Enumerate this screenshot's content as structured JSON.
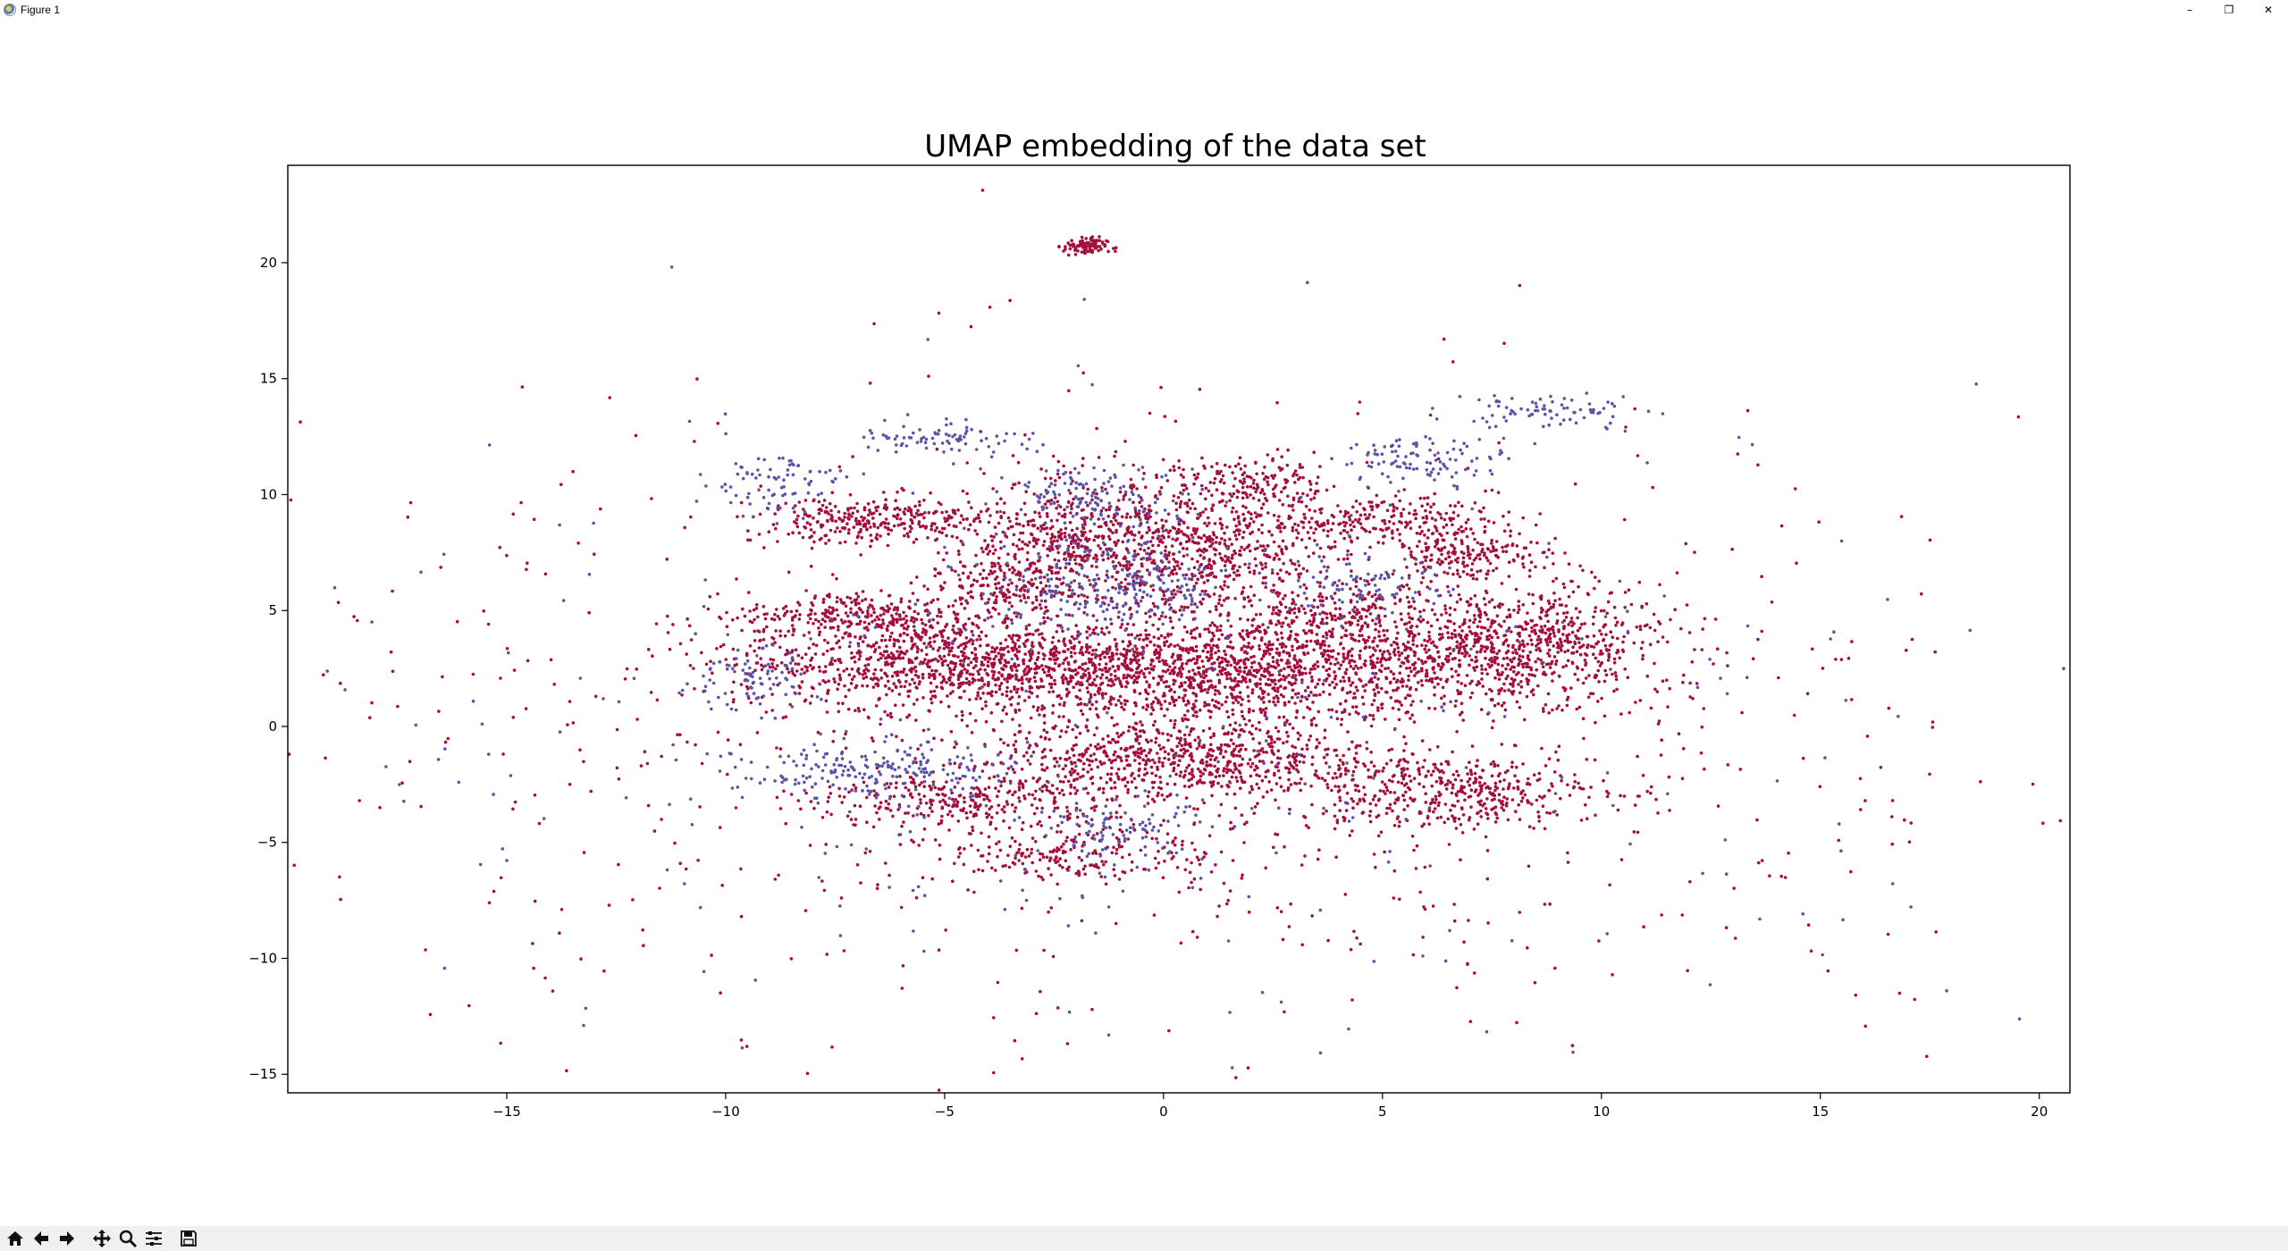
{
  "window": {
    "title": "Figure 1",
    "controls": [
      {
        "name": "minimize-button",
        "glyph": "–"
      },
      {
        "name": "restore-button",
        "glyph": "❐"
      },
      {
        "name": "close-button",
        "glyph": "✕"
      }
    ]
  },
  "toolbar": {
    "tools": [
      {
        "name": "home-button",
        "icon": "home-icon"
      },
      {
        "name": "back-button",
        "icon": "arrow-left-icon"
      },
      {
        "name": "forward-button",
        "icon": "arrow-right-icon"
      },
      {
        "name": "pan-button",
        "icon": "move-icon"
      },
      {
        "name": "zoom-button",
        "icon": "magnifier-icon"
      },
      {
        "name": "configure-subplots-button",
        "icon": "sliders-icon"
      },
      {
        "name": "save-button",
        "icon": "floppy-disk-icon"
      }
    ]
  },
  "chart_data": {
    "type": "scatter",
    "title": "UMAP embedding of the data set",
    "xlabel": "",
    "ylabel": "",
    "xlim": [
      -20,
      20.7
    ],
    "ylim": [
      -15.8,
      24.2
    ],
    "xticks": [
      -15,
      -10,
      -5,
      0,
      5,
      10,
      15,
      20
    ],
    "yticks": [
      -15,
      -10,
      -5,
      0,
      5,
      10,
      15,
      20
    ],
    "tick_labels_x": [
      "−15",
      "−10",
      "−5",
      "0",
      "5",
      "10",
      "15",
      "20"
    ],
    "tick_labels_y": [
      "−15",
      "−10",
      "−5",
      "0",
      "5",
      "10",
      "15",
      "20"
    ],
    "grid": false,
    "legend": "none",
    "colors": {
      "class_a": "#a50f3c",
      "class_b": "#5a55a8"
    },
    "series": [
      {
        "color": "#a50f3c",
        "clusters": [
          {
            "cx": 1.5,
            "cy": 2.3,
            "sx": 3.6,
            "sy": 1.1,
            "count": 1500
          },
          {
            "cx": -5.0,
            "cy": 2.8,
            "sx": 2.4,
            "sy": 1.0,
            "count": 900
          },
          {
            "cx": 0.5,
            "cy": -1.4,
            "sx": 2.2,
            "sy": 0.9,
            "count": 700
          },
          {
            "cx": 8.2,
            "cy": 3.6,
            "sx": 1.6,
            "sy": 1.2,
            "count": 650
          },
          {
            "cx": 0.9,
            "cy": 7.6,
            "sx": 1.6,
            "sy": 1.4,
            "count": 650
          },
          {
            "cx": -2.2,
            "cy": 8.0,
            "sx": 1.1,
            "sy": 1.3,
            "count": 420
          },
          {
            "cx": -6.5,
            "cy": 8.9,
            "sx": 1.4,
            "sy": 0.5,
            "count": 300
          },
          {
            "cx": 6.4,
            "cy": -2.8,
            "sx": 1.8,
            "sy": 0.8,
            "count": 420
          },
          {
            "cx": -4.5,
            "cy": -3.2,
            "sx": 1.8,
            "sy": 0.7,
            "count": 300
          },
          {
            "cx": 3.8,
            "cy": 4.5,
            "sx": 1.5,
            "sy": 0.9,
            "count": 300
          },
          {
            "cx": 5.0,
            "cy": 9.0,
            "sx": 1.3,
            "sy": 0.5,
            "count": 200
          },
          {
            "cx": -2.0,
            "cy": -5.5,
            "sx": 1.6,
            "sy": 0.6,
            "count": 200
          },
          {
            "cx": 2.0,
            "cy": 10.5,
            "sx": 1.0,
            "sy": 0.6,
            "count": 150
          },
          {
            "cx": -1.8,
            "cy": 20.7,
            "sx": 0.25,
            "sy": 0.2,
            "count": 90
          },
          {
            "cx": -7.0,
            "cy": 4.8,
            "sx": 1.3,
            "sy": 0.5,
            "count": 250
          },
          {
            "cx": 6.8,
            "cy": 7.5,
            "sx": 0.9,
            "sy": 0.6,
            "count": 200
          },
          {
            "cx": -3.8,
            "cy": 6.0,
            "sx": 0.8,
            "sy": 0.6,
            "count": 150
          },
          {
            "cx": 0.0,
            "cy": 0.0,
            "sx": 10.0,
            "sy": 7.0,
            "count": 950
          }
        ]
      },
      {
        "color": "#5a55a8",
        "clusters": [
          {
            "cx": -1.2,
            "cy": 6.0,
            "sx": 1.5,
            "sy": 1.2,
            "count": 280
          },
          {
            "cx": -6.5,
            "cy": -2.0,
            "sx": 1.6,
            "sy": 0.6,
            "count": 220
          },
          {
            "cx": -1.5,
            "cy": 10.0,
            "sx": 1.0,
            "sy": 0.6,
            "count": 120
          },
          {
            "cx": 6.0,
            "cy": 11.5,
            "sx": 1.0,
            "sy": 0.5,
            "count": 100
          },
          {
            "cx": -5.0,
            "cy": 12.5,
            "sx": 1.0,
            "sy": 0.4,
            "count": 80
          },
          {
            "cx": 8.8,
            "cy": 13.6,
            "sx": 1.1,
            "sy": 0.4,
            "count": 80
          },
          {
            "cx": -9.0,
            "cy": 10.5,
            "sx": 0.8,
            "sy": 0.7,
            "count": 80
          },
          {
            "cx": -9.5,
            "cy": 2.0,
            "sx": 0.8,
            "sy": 0.7,
            "count": 90
          },
          {
            "cx": 4.5,
            "cy": 6.0,
            "sx": 1.0,
            "sy": 0.7,
            "count": 90
          },
          {
            "cx": -1.0,
            "cy": -4.5,
            "sx": 1.0,
            "sy": 0.6,
            "count": 90
          },
          {
            "cx": 0.0,
            "cy": 0.0,
            "sx": 10.0,
            "sy": 7.0,
            "count": 350
          }
        ]
      }
    ]
  }
}
